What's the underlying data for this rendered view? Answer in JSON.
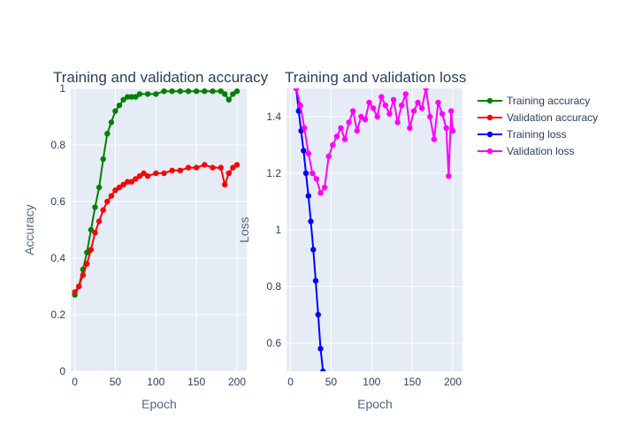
{
  "chart_data": [
    {
      "type": "line",
      "title": "Training and validation accuracy",
      "xlabel": "Epoch",
      "ylabel": "Accuracy",
      "xlim": [
        -5,
        212
      ],
      "ylim": [
        0,
        1
      ],
      "xticks": [
        0,
        50,
        100,
        150,
        200
      ],
      "yticks": [
        0,
        0.2,
        0.4,
        0.6,
        0.8,
        1
      ],
      "ytick_labels": [
        "0",
        "0.2",
        "0.4",
        "0.6",
        "0.8",
        "1"
      ],
      "series": [
        {
          "name": "Training accuracy",
          "color": "#008000",
          "x": [
            0,
            5,
            10,
            15,
            20,
            25,
            30,
            35,
            40,
            45,
            50,
            55,
            60,
            65,
            70,
            75,
            80,
            90,
            100,
            110,
            120,
            130,
            140,
            150,
            160,
            170,
            180,
            185,
            190,
            195,
            200
          ],
          "y": [
            0.27,
            0.3,
            0.36,
            0.42,
            0.5,
            0.58,
            0.65,
            0.75,
            0.84,
            0.88,
            0.92,
            0.94,
            0.96,
            0.97,
            0.97,
            0.97,
            0.98,
            0.98,
            0.98,
            0.99,
            0.99,
            0.99,
            0.99,
            0.99,
            0.99,
            0.99,
            0.99,
            0.98,
            0.96,
            0.98,
            0.99
          ]
        },
        {
          "name": "Validation accuracy",
          "color": "#ff0000",
          "x": [
            0,
            5,
            10,
            15,
            20,
            25,
            30,
            35,
            40,
            45,
            50,
            55,
            60,
            65,
            70,
            75,
            80,
            85,
            90,
            100,
            110,
            120,
            130,
            140,
            150,
            160,
            170,
            180,
            185,
            190,
            195,
            200
          ],
          "y": [
            0.28,
            0.3,
            0.34,
            0.38,
            0.43,
            0.49,
            0.53,
            0.57,
            0.6,
            0.62,
            0.64,
            0.65,
            0.66,
            0.67,
            0.67,
            0.68,
            0.69,
            0.7,
            0.69,
            0.7,
            0.7,
            0.71,
            0.71,
            0.72,
            0.72,
            0.73,
            0.72,
            0.72,
            0.66,
            0.7,
            0.72,
            0.73
          ]
        }
      ]
    },
    {
      "type": "line",
      "title": "Training and validation loss",
      "xlabel": "Epoch",
      "ylabel": "Loss",
      "xlim": [
        -5,
        212
      ],
      "ylim": [
        0.5,
        1.5
      ],
      "xticks": [
        0,
        50,
        100,
        150,
        200
      ],
      "yticks": [
        0.6,
        0.8,
        1.0,
        1.2,
        1.4
      ],
      "ytick_labels": [
        "0.6",
        "0.8",
        "1",
        "1.2",
        "1.4"
      ],
      "series": [
        {
          "name": "Training loss",
          "color": "#0000ff",
          "x": [
            7,
            10,
            13,
            16,
            19,
            22,
            25,
            28,
            31,
            34,
            37,
            40
          ],
          "y": [
            1.5,
            1.42,
            1.35,
            1.28,
            1.2,
            1.12,
            1.03,
            0.93,
            0.82,
            0.7,
            0.58,
            0.5
          ]
        },
        {
          "name": "Validation loss",
          "color": "#ff00ff",
          "x": [
            7,
            12,
            17,
            22,
            27,
            32,
            37,
            42,
            47,
            52,
            57,
            62,
            67,
            72,
            77,
            82,
            87,
            92,
            97,
            102,
            107,
            112,
            117,
            122,
            127,
            132,
            137,
            142,
            147,
            152,
            157,
            162,
            167,
            172,
            177,
            182,
            187,
            192,
            195,
            198,
            200
          ],
          "y": [
            1.5,
            1.44,
            1.36,
            1.27,
            1.2,
            1.18,
            1.13,
            1.15,
            1.26,
            1.3,
            1.33,
            1.36,
            1.32,
            1.38,
            1.42,
            1.35,
            1.4,
            1.39,
            1.45,
            1.43,
            1.4,
            1.47,
            1.44,
            1.41,
            1.46,
            1.38,
            1.44,
            1.48,
            1.36,
            1.42,
            1.45,
            1.43,
            1.5,
            1.4,
            1.32,
            1.45,
            1.41,
            1.36,
            1.19,
            1.42,
            1.35
          ]
        }
      ]
    }
  ],
  "legend": {
    "placement": "right",
    "items": [
      {
        "label": "Training accuracy",
        "color": "#008000"
      },
      {
        "label": "Validation accuracy",
        "color": "#ff0000"
      },
      {
        "label": "Training loss",
        "color": "#0000ff"
      },
      {
        "label": "Validation loss",
        "color": "#ff00ff"
      }
    ]
  }
}
